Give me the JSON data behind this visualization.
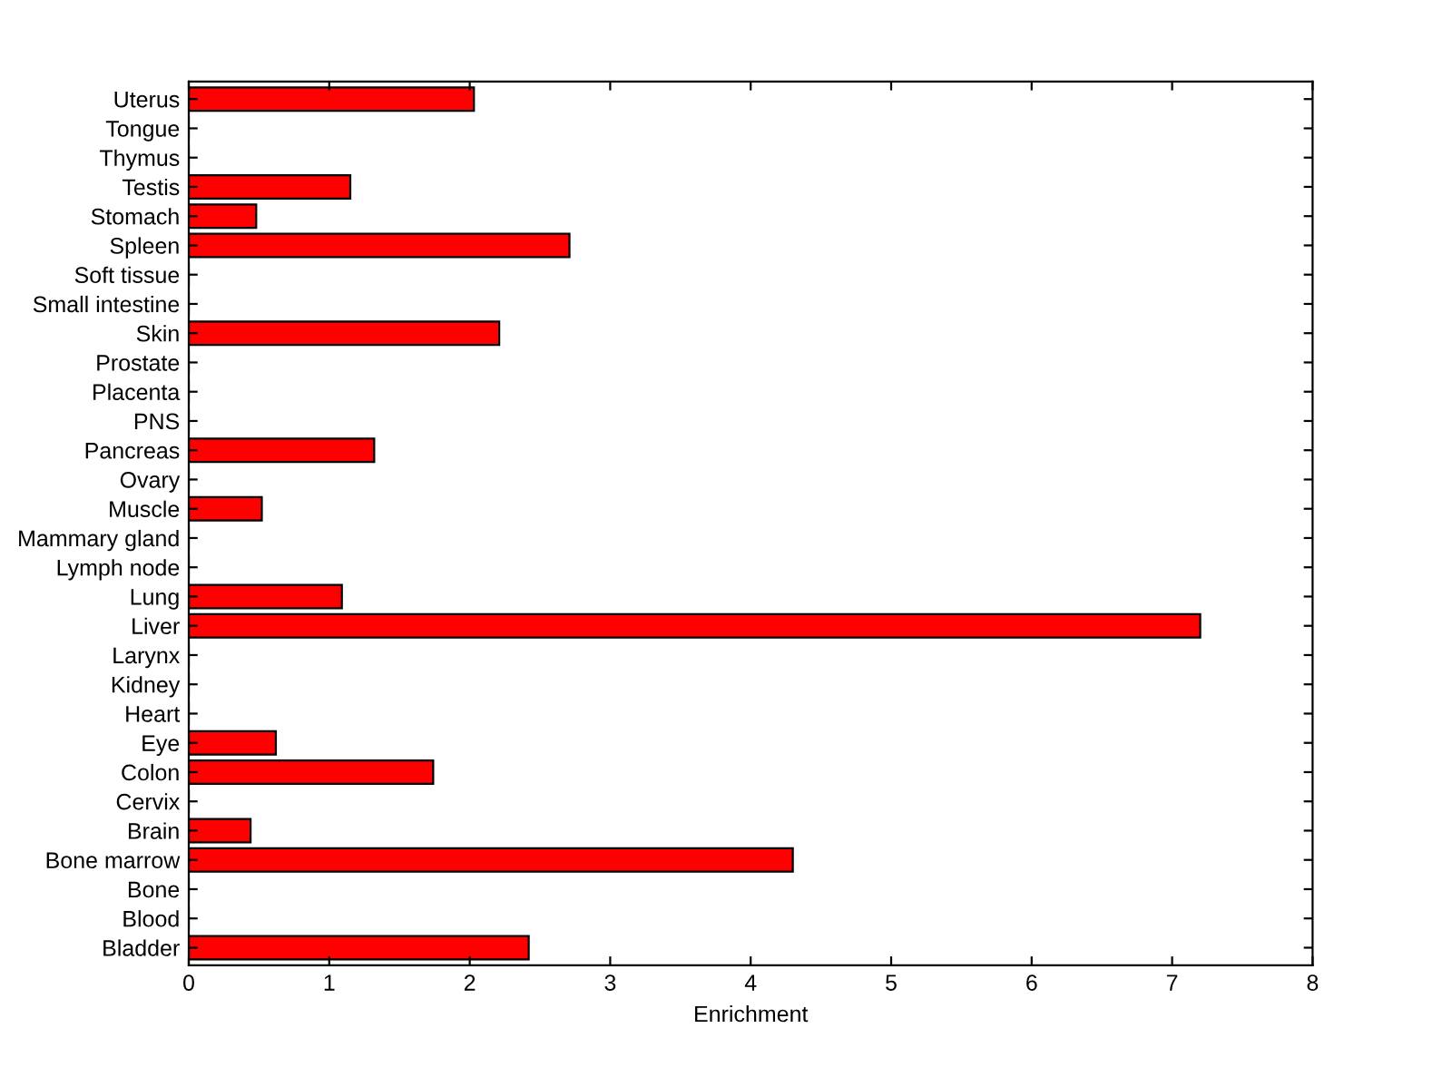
{
  "chart_data": {
    "type": "bar",
    "orientation": "horizontal",
    "xlabel": "Enrichment",
    "categories": [
      "Uterus",
      "Tongue",
      "Thymus",
      "Testis",
      "Stomach",
      "Spleen",
      "Soft tissue",
      "Small intestine",
      "Skin",
      "Prostate",
      "Placenta",
      "PNS",
      "Pancreas",
      "Ovary",
      "Muscle",
      "Mammary gland",
      "Lymph node",
      "Lung",
      "Liver",
      "Larynx",
      "Kidney",
      "Heart",
      "Eye",
      "Colon",
      "Cervix",
      "Brain",
      "Bone marrow",
      "Bone",
      "Blood",
      "Bladder"
    ],
    "values": [
      2.03,
      0,
      0,
      1.15,
      0.48,
      2.71,
      0,
      0,
      2.21,
      0,
      0,
      0,
      1.32,
      0,
      0.52,
      0,
      0,
      1.09,
      7.2,
      0,
      0,
      0,
      0.62,
      1.74,
      0,
      0.44,
      4.3,
      0,
      0,
      2.42
    ],
    "color": "#ff0000",
    "xlim": [
      0,
      8
    ],
    "xticks": [
      0,
      1,
      2,
      3,
      4,
      5,
      6,
      7,
      8
    ],
    "grid": false
  }
}
